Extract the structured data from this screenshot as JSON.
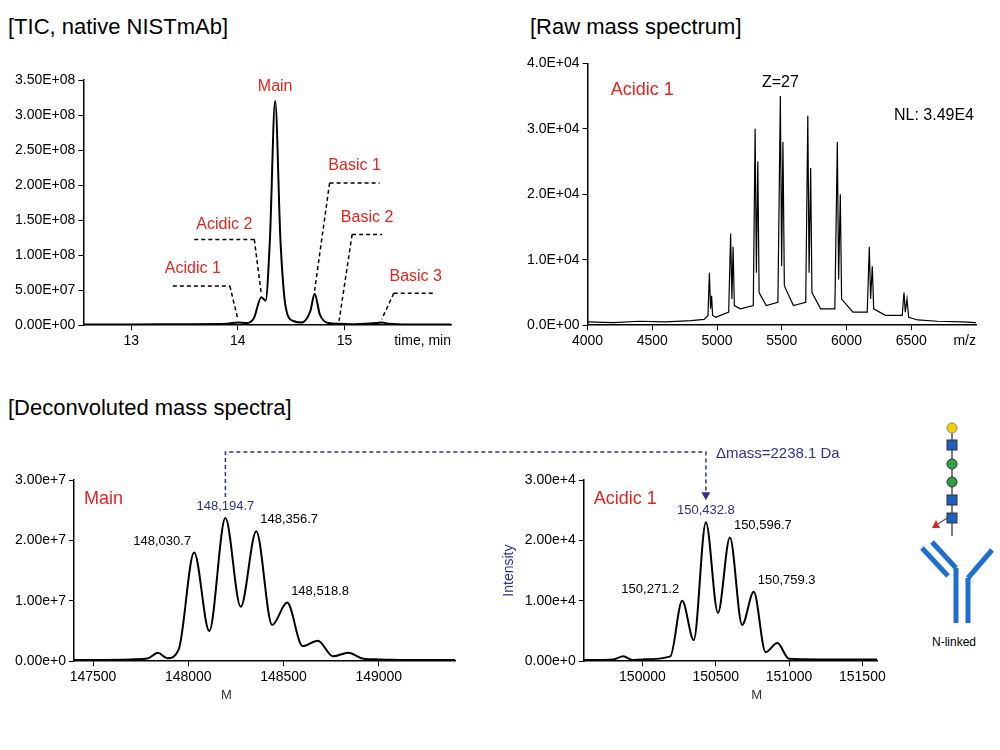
{
  "section_title": "[Deconvoluted mass spectra]",
  "mass_shift": {
    "label": "Δmass=2238.1 Da",
    "from": 148194.7,
    "to": 150432.8
  },
  "glycan_icon": {
    "label": "N-linked"
  },
  "chart_data": [
    {
      "type": "line",
      "title": "[TIC, native NISTmAb]",
      "x_label": "time, min",
      "color": "#000000",
      "grid": false,
      "xlim": [
        12.55,
        16.0
      ],
      "xticks": [
        13,
        14,
        15
      ],
      "ylim": [
        0,
        350000000
      ],
      "yticks": [
        {
          "value": 0,
          "label": "0.00E+00"
        },
        {
          "value": 50000000,
          "label": "5.00E+07"
        },
        {
          "value": 100000000,
          "label": "1.00E+08"
        },
        {
          "value": 150000000,
          "label": "1.50E+08"
        },
        {
          "value": 200000000,
          "label": "2.00E+08"
        },
        {
          "value": 250000000,
          "label": "2.50E+08"
        },
        {
          "value": 300000000,
          "label": "3.00E+08"
        },
        {
          "value": 350000000,
          "label": "3.50E+08"
        }
      ],
      "x": [
        12.55,
        13.0,
        13.5,
        13.9,
        14.0,
        14.08,
        14.15,
        14.22,
        14.26,
        14.3,
        14.35,
        14.4,
        14.45,
        14.52,
        14.6,
        14.68,
        14.72,
        14.77,
        14.85,
        14.95,
        15.1,
        15.3,
        15.35,
        15.42,
        15.6,
        16.0
      ],
      "values": [
        1000000,
        1000000,
        1500000,
        2000000,
        4000000,
        3000000,
        10000000,
        40000000,
        35000000,
        120000000,
        320000000,
        120000000,
        25000000,
        6000000,
        4000000,
        20000000,
        45000000,
        15000000,
        3000000,
        2000000,
        1500000,
        3000000,
        4000000,
        2000000,
        1000000,
        1000000
      ],
      "peak_labels": [
        {
          "text": "Acidic 1",
          "x": 14.0,
          "y": 4000000,
          "color": "#e8231f"
        },
        {
          "text": "Acidic 2",
          "x": 14.22,
          "y": 40000000,
          "color": "#e8231f"
        },
        {
          "text": "Main",
          "x": 14.35,
          "y": 320000000,
          "color": "#e8231f"
        },
        {
          "text": "Basic 1",
          "x": 14.72,
          "y": 45000000,
          "color": "#e8231f"
        },
        {
          "text": "Basic 2",
          "x": 14.95,
          "y": 2000000,
          "color": "#e8231f"
        },
        {
          "text": "Basic 3",
          "x": 15.35,
          "y": 4000000,
          "color": "#e8231f"
        }
      ]
    },
    {
      "type": "line",
      "title": "[Raw mass spectrum]",
      "x_label": "m/z",
      "color": "#000000",
      "grid": false,
      "xlim": [
        4000,
        7000
      ],
      "xticks": [
        4000,
        4500,
        5000,
        5500,
        6000,
        6500
      ],
      "ylim": [
        0,
        40000
      ],
      "yticks": [
        {
          "value": 0,
          "label": "0.0E+00"
        },
        {
          "value": 10000,
          "label": "1.0E+04"
        },
        {
          "value": 20000,
          "label": "2.0E+04"
        },
        {
          "value": 30000,
          "label": "3.0E+04"
        },
        {
          "value": 40000,
          "label": "4.0E+04"
        }
      ],
      "x": [
        4000,
        4200,
        4400,
        4600,
        4800,
        4900,
        4930,
        4941,
        4950,
        4958,
        4966,
        4990,
        5090,
        5105,
        5115,
        5124,
        5134,
        5180,
        5280,
        5294,
        5304,
        5315,
        5325,
        5380,
        5470,
        5489,
        5499,
        5509,
        5520,
        5590,
        5685,
        5701,
        5711,
        5723,
        5733,
        5800,
        5910,
        5929,
        5939,
        5952,
        5962,
        6050,
        6160,
        6176,
        6186,
        6199,
        6210,
        6300,
        6430,
        6444,
        6454,
        6467,
        6480,
        6550,
        6700,
        6900,
        7000
      ],
      "values": [
        500,
        400,
        600,
        500,
        700,
        900,
        1500,
        8000,
        2500,
        4500,
        1500,
        1200,
        2000,
        14000,
        4000,
        12000,
        3000,
        2500,
        3000,
        30000,
        8000,
        25000,
        5000,
        3000,
        3500,
        35000,
        9000,
        28000,
        6000,
        3000,
        3500,
        32000,
        8000,
        24000,
        5000,
        2500,
        2500,
        28000,
        7000,
        20000,
        4000,
        2000,
        2000,
        12000,
        4000,
        9000,
        2500,
        1500,
        1500,
        5000,
        2000,
        4000,
        1200,
        800,
        600,
        500,
        400
      ],
      "panel_label": {
        "text": "Acidic 1",
        "color": "#e8231f"
      },
      "charge_label": {
        "text": "Z=27",
        "x": 5489,
        "y": 35000,
        "color": "#000000"
      },
      "nl_label": {
        "text": "NL: 3.49E4",
        "color": "#000000"
      }
    },
    {
      "type": "line",
      "color": "#000000",
      "grid": false,
      "xlim": [
        147400,
        149400
      ],
      "xticks": [
        147500,
        148000,
        148500,
        149000
      ],
      "ylim": [
        0,
        30000000
      ],
      "yticks": [
        {
          "value": 0,
          "label": "0.00e+0"
        },
        {
          "value": 10000000,
          "label": "1.00e+7"
        },
        {
          "value": 20000000,
          "label": "2.00e+7"
        },
        {
          "value": 30000000,
          "label": "3.00e+7"
        }
      ],
      "x": [
        147400,
        147700,
        147790,
        147840,
        147890,
        147950,
        148030.7,
        148110,
        148194.7,
        148275,
        148356.7,
        148440,
        148518.8,
        148600,
        148680,
        148760,
        148840,
        148920,
        149000,
        149200,
        149400
      ],
      "values": [
        200000,
        300000,
        500000,
        1400000,
        500000,
        2000000,
        18000000,
        5000000,
        23700000,
        9000000,
        21500000,
        6000000,
        9700000,
        2500000,
        3400000,
        800000,
        1400000,
        400000,
        300000,
        200000,
        200000
      ],
      "panel_label": {
        "text": "Main",
        "color": "#e8231f"
      },
      "peak_labels": [
        {
          "x": 148030.7,
          "y": 18000000,
          "label": "148,030.7",
          "color": "#000000"
        },
        {
          "x": 148194.7,
          "y": 23700000,
          "label": "148,194.7",
          "color": "#2e3192"
        },
        {
          "x": 148356.7,
          "y": 21500000,
          "label": "148,356.7",
          "color": "#000000"
        },
        {
          "x": 148518.8,
          "y": 9700000,
          "label": "148,518.8",
          "color": "#000000"
        }
      ],
      "marker_labels": [
        {
          "text": "M",
          "x": 148200
        }
      ]
    },
    {
      "type": "line",
      "color": "#000000",
      "grid": false,
      "y_label": "Intensity",
      "xlim": [
        149600,
        151600
      ],
      "xticks": [
        150000,
        150500,
        151000,
        151500
      ],
      "ylim": [
        0,
        30000
      ],
      "yticks": [
        {
          "value": 0,
          "label": "0.00e+0"
        },
        {
          "value": 10000,
          "label": "1.00e+4"
        },
        {
          "value": 20000,
          "label": "2.00e+4"
        },
        {
          "value": 30000,
          "label": "3.00e+4"
        }
      ],
      "x": [
        149600,
        149800,
        149870,
        149930,
        150000,
        150190,
        150271.2,
        150350,
        150432.8,
        150515,
        150596.7,
        150680,
        150759.3,
        150840,
        150920,
        151000,
        151200,
        151600
      ],
      "values": [
        200,
        300,
        800,
        200,
        300,
        800,
        10000,
        3500,
        23000,
        8000,
        20500,
        6000,
        11500,
        1500,
        3000,
        400,
        300,
        300
      ],
      "panel_label": {
        "text": "Acidic 1",
        "color": "#e8231f"
      },
      "peak_labels": [
        {
          "x": 150271.2,
          "y": 10000,
          "label": "150,271.2",
          "color": "#000000"
        },
        {
          "x": 150432.8,
          "y": 23000,
          "label": "150,432.8",
          "color": "#2e3192"
        },
        {
          "x": 150596.7,
          "y": 20500,
          "label": "150,596.7",
          "color": "#000000"
        },
        {
          "x": 150759.3,
          "y": 11500,
          "label": "150,759.3",
          "color": "#000000"
        }
      ],
      "marker_labels": [
        {
          "text": "M",
          "x": 150780
        }
      ]
    }
  ]
}
